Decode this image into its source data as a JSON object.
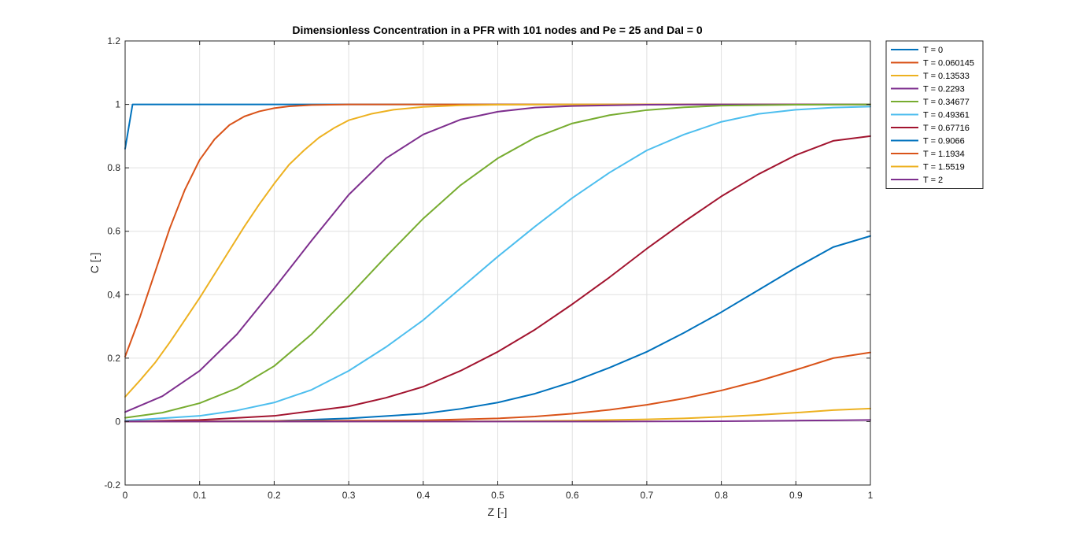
{
  "chart_data": {
    "type": "line",
    "title": "Dimensionless Concentration in a PFR with 101 nodes and Pe = 25 and DaI = 0",
    "xlabel": "Z [-]",
    "ylabel": "C [-]",
    "xlim": [
      0,
      1
    ],
    "ylim": [
      -0.2,
      1.2
    ],
    "xticks": [
      0,
      0.1,
      0.2,
      0.3,
      0.4,
      0.5,
      0.6,
      0.7,
      0.8,
      0.9,
      1
    ],
    "yticks": [
      -0.2,
      0,
      0.2,
      0.4,
      0.6,
      0.8,
      1,
      1.2
    ],
    "xtick_labels": [
      "0",
      "0.1",
      "0.2",
      "0.3",
      "0.4",
      "0.5",
      "0.6",
      "0.7",
      "0.8",
      "0.9",
      "1"
    ],
    "ytick_labels": [
      "-0.2",
      "0",
      "0.2",
      "0.4",
      "0.6",
      "0.8",
      "1",
      "1.2"
    ],
    "grid": true,
    "legend_position": "outside-top-right",
    "series": [
      {
        "name": "T = 0",
        "color": "#0072BD",
        "x": [
          0,
          0.01,
          0.02,
          0.1,
          0.2,
          0.3,
          0.4,
          0.5,
          0.6,
          0.7,
          0.8,
          0.9,
          1.0
        ],
        "y": [
          0.86,
          1.0,
          1.0,
          1.0,
          1.0,
          1.0,
          1.0,
          1.0,
          1.0,
          1.0,
          1.0,
          1.0,
          1.0
        ]
      },
      {
        "name": "T = 0.060145",
        "color": "#D95319",
        "x": [
          0,
          0.02,
          0.04,
          0.06,
          0.08,
          0.1,
          0.12,
          0.14,
          0.16,
          0.18,
          0.2,
          0.22,
          0.25,
          0.3,
          0.4,
          0.6,
          1.0
        ],
        "y": [
          0.205,
          0.33,
          0.47,
          0.61,
          0.73,
          0.825,
          0.89,
          0.935,
          0.962,
          0.978,
          0.988,
          0.994,
          0.998,
          1.0,
          1.0,
          1.0,
          1.0
        ]
      },
      {
        "name": "T = 0.13533",
        "color": "#EDB120",
        "x": [
          0,
          0.02,
          0.04,
          0.06,
          0.08,
          0.1,
          0.12,
          0.14,
          0.16,
          0.18,
          0.2,
          0.22,
          0.24,
          0.26,
          0.28,
          0.3,
          0.33,
          0.36,
          0.4,
          0.45,
          0.5,
          0.6,
          0.8,
          1.0
        ],
        "y": [
          0.078,
          0.13,
          0.185,
          0.25,
          0.32,
          0.39,
          0.465,
          0.54,
          0.615,
          0.685,
          0.75,
          0.81,
          0.855,
          0.895,
          0.925,
          0.95,
          0.97,
          0.983,
          0.992,
          0.997,
          0.999,
          1.0,
          1.0,
          1.0
        ]
      },
      {
        "name": "T = 0.2293",
        "color": "#7E2F8E",
        "x": [
          0,
          0.05,
          0.1,
          0.15,
          0.2,
          0.25,
          0.3,
          0.35,
          0.4,
          0.45,
          0.5,
          0.55,
          0.6,
          0.7,
          0.8,
          1.0
        ],
        "y": [
          0.03,
          0.08,
          0.16,
          0.275,
          0.42,
          0.57,
          0.715,
          0.83,
          0.905,
          0.952,
          0.977,
          0.99,
          0.995,
          0.999,
          1.0,
          1.0
        ]
      },
      {
        "name": "T = 0.34677",
        "color": "#77AC30",
        "x": [
          0,
          0.05,
          0.1,
          0.15,
          0.2,
          0.25,
          0.3,
          0.35,
          0.4,
          0.45,
          0.5,
          0.55,
          0.6,
          0.65,
          0.7,
          0.75,
          0.8,
          0.9,
          1.0
        ],
        "y": [
          0.012,
          0.028,
          0.058,
          0.105,
          0.175,
          0.275,
          0.395,
          0.52,
          0.64,
          0.745,
          0.83,
          0.895,
          0.94,
          0.966,
          0.982,
          0.991,
          0.996,
          0.999,
          1.0
        ]
      },
      {
        "name": "T = 0.49361",
        "color": "#4DBEEE",
        "x": [
          0,
          0.1,
          0.15,
          0.2,
          0.25,
          0.3,
          0.35,
          0.4,
          0.45,
          0.5,
          0.55,
          0.6,
          0.65,
          0.7,
          0.75,
          0.8,
          0.85,
          0.9,
          0.95,
          1.0
        ],
        "y": [
          0.003,
          0.018,
          0.035,
          0.06,
          0.1,
          0.16,
          0.235,
          0.32,
          0.42,
          0.52,
          0.615,
          0.705,
          0.785,
          0.855,
          0.905,
          0.945,
          0.97,
          0.983,
          0.99,
          0.993
        ]
      },
      {
        "name": "T = 0.67716",
        "color": "#A2142F",
        "x": [
          0,
          0.1,
          0.2,
          0.3,
          0.35,
          0.4,
          0.45,
          0.5,
          0.55,
          0.6,
          0.65,
          0.7,
          0.75,
          0.8,
          0.85,
          0.9,
          0.95,
          1.0
        ],
        "y": [
          0.0,
          0.005,
          0.018,
          0.048,
          0.075,
          0.11,
          0.16,
          0.22,
          0.29,
          0.37,
          0.455,
          0.545,
          0.63,
          0.71,
          0.78,
          0.84,
          0.885,
          0.9
        ]
      },
      {
        "name": "T = 0.9066",
        "color": "#0072BD",
        "x": [
          0,
          0.2,
          0.3,
          0.4,
          0.45,
          0.5,
          0.55,
          0.6,
          0.65,
          0.7,
          0.75,
          0.8,
          0.85,
          0.9,
          0.95,
          1.0
        ],
        "y": [
          0.0,
          0.002,
          0.01,
          0.025,
          0.04,
          0.06,
          0.088,
          0.125,
          0.17,
          0.22,
          0.28,
          0.345,
          0.415,
          0.485,
          0.55,
          0.585
        ]
      },
      {
        "name": "T = 1.1934",
        "color": "#D95319",
        "x": [
          0,
          0.4,
          0.5,
          0.55,
          0.6,
          0.65,
          0.7,
          0.75,
          0.8,
          0.85,
          0.9,
          0.95,
          1.0
        ],
        "y": [
          0.0,
          0.004,
          0.01,
          0.016,
          0.025,
          0.037,
          0.053,
          0.073,
          0.098,
          0.128,
          0.163,
          0.2,
          0.218
        ]
      },
      {
        "name": "T = 1.5519",
        "color": "#EDB120",
        "x": [
          0,
          0.5,
          0.6,
          0.7,
          0.75,
          0.8,
          0.85,
          0.9,
          0.95,
          1.0
        ],
        "y": [
          0.0,
          0.001,
          0.003,
          0.007,
          0.01,
          0.015,
          0.021,
          0.028,
          0.036,
          0.041
        ]
      },
      {
        "name": "T = 2",
        "color": "#7E2F8E",
        "x": [
          0,
          0.6,
          0.7,
          0.8,
          0.9,
          0.95,
          1.0
        ],
        "y": [
          0.0,
          0.0,
          0.0005,
          0.001,
          0.003,
          0.004,
          0.005
        ]
      }
    ]
  }
}
